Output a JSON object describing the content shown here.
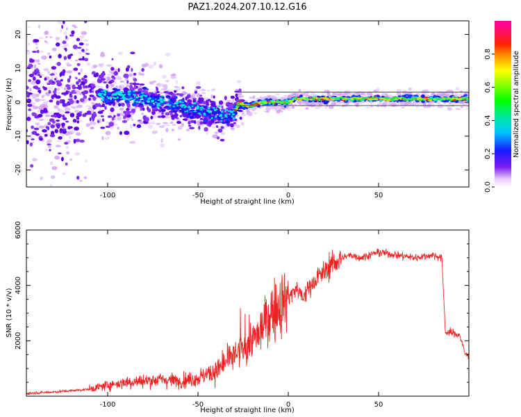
{
  "figure_title": "PAZ1.2024.207.10.12.G16",
  "chart_data": [
    {
      "type": "heatmap",
      "title": "PAZ1.2024.207.10.12.G16",
      "xlabel": "Height of straight line (km)",
      "ylabel": "Frequency (Hz)",
      "xlim": [
        -145,
        100
      ],
      "ylim": [
        -25,
        24
      ],
      "xticks": [
        -100,
        -50,
        0,
        50
      ],
      "yticks": [
        -20,
        -10,
        0,
        10,
        20
      ],
      "grid": false,
      "colorscale": "gist_ncar-like (white-purple-blue-cyan-green-yellow-red-magenta)",
      "colorbar": {
        "label": "Normalized spectral amplitude",
        "ticks": [
          "0.0",
          "0.2",
          "0.4",
          "0.6",
          "0.8"
        ],
        "range": [
          0,
          1
        ],
        "placement": "right"
      },
      "ridge": {
        "description": "dominant spectral line frequency vs height (approx.)",
        "x": [
          -145,
          -120,
          -100,
          -90,
          -80,
          -70,
          -60,
          -55,
          -50,
          -45,
          -40,
          -35,
          -30,
          -27,
          -25,
          -20,
          -15,
          -10,
          -5,
          0,
          3,
          5,
          10,
          20,
          30,
          40,
          50,
          60,
          70,
          80,
          90,
          100
        ],
        "y": [
          2,
          2,
          2,
          2,
          1,
          0,
          -1,
          -2,
          -2,
          -3,
          -3,
          -4,
          -3,
          0,
          -1,
          -1,
          0,
          0,
          0,
          0,
          1,
          1,
          1,
          1,
          1,
          1,
          1,
          1,
          1,
          1,
          1,
          1
        ]
      }
    },
    {
      "type": "line",
      "title": "",
      "xlabel": "Height of straight line (km)",
      "ylabel": "SNR (10 * v/v)",
      "xlim": [
        -145,
        100
      ],
      "ylim": [
        0,
        6000
      ],
      "xticks": [
        -100,
        -50,
        0,
        50
      ],
      "yticks": [
        2000,
        4000,
        6000
      ],
      "grid": false,
      "line_color": "#ee2222",
      "series": [
        {
          "description": "approx. SNR envelope (mean level) vs height",
          "x": [
            -145,
            -130,
            -120,
            -110,
            -100,
            -90,
            -80,
            -70,
            -60,
            -50,
            -45,
            -40,
            -35,
            -30,
            -25,
            -20,
            -15,
            -10,
            -5,
            0,
            5,
            8,
            10,
            15,
            20,
            25,
            30,
            35,
            40,
            45,
            50,
            60,
            70,
            80,
            85,
            87,
            88,
            90,
            95,
            98,
            100
          ],
          "y": [
            100,
            150,
            200,
            250,
            400,
            500,
            550,
            600,
            550,
            650,
            800,
            900,
            1200,
            1500,
            1700,
            2000,
            2400,
            3000,
            3300,
            3600,
            3900,
            3500,
            3800,
            4200,
            4500,
            4800,
            5000,
            5100,
            5000,
            5100,
            5200,
            5100,
            5000,
            5100,
            5000,
            2300,
            2300,
            2300,
            2200,
            1500,
            1500
          ]
        }
      ]
    }
  ]
}
